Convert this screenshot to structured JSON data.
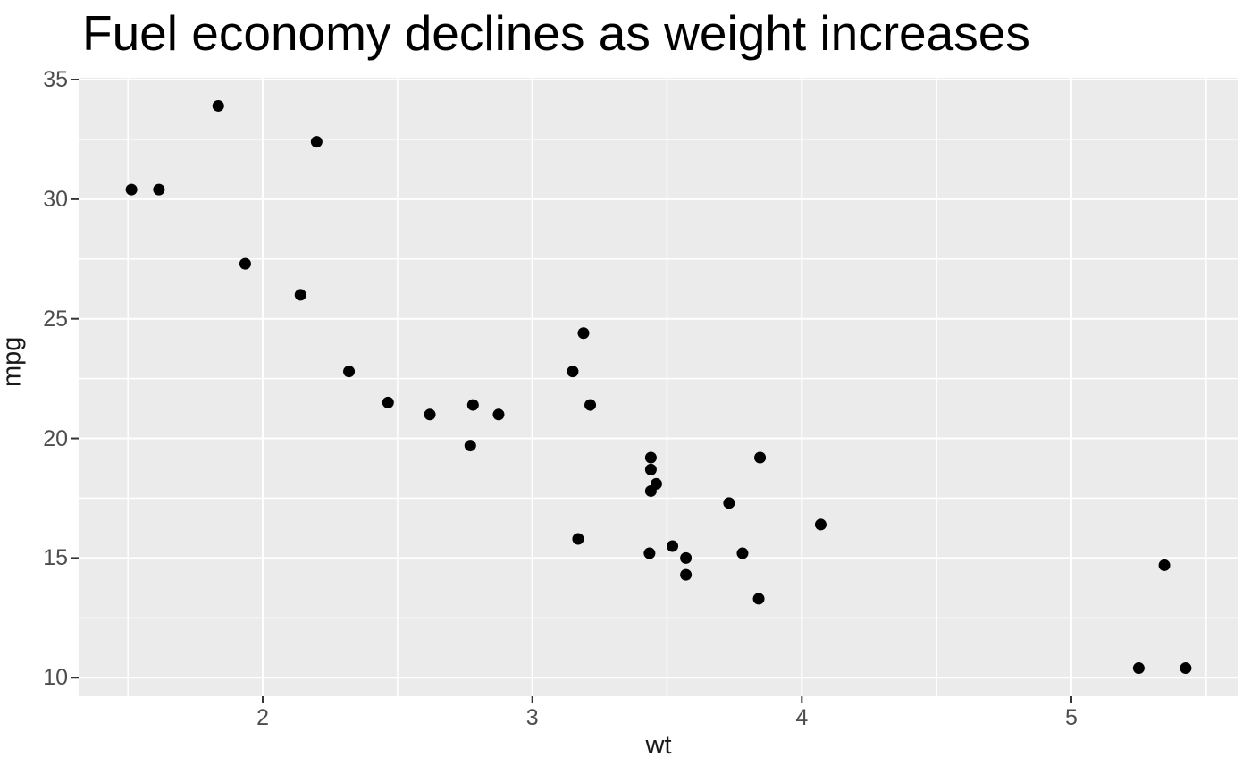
{
  "title": "Fuel economy declines as weight increases",
  "colors": {
    "background": "#FFFFFF",
    "panel_background": "#EBEBEB",
    "grid_major": "#FFFFFF",
    "grid_minor": "#FFFFFF",
    "point": "#000000",
    "tick_mark": "#333333",
    "tick_label": "#4D4D4D",
    "axis_title": "#1A1A1A",
    "title": "#000000"
  },
  "chart_data": {
    "type": "scatter",
    "title": "Fuel economy declines as weight increases",
    "xlabel": "wt",
    "ylabel": "mpg",
    "xlim": [
      1.317,
      5.62
    ],
    "ylim": [
      9.225,
      35.075
    ],
    "x_ticks": [
      2,
      3,
      4,
      5
    ],
    "y_ticks": [
      10,
      15,
      20,
      25,
      30,
      35
    ],
    "x_minor_ticks": [
      1.5,
      2.5,
      3.5,
      4.5,
      5.5
    ],
    "y_minor_ticks": [
      12.5,
      17.5,
      22.5,
      27.5,
      32.5
    ],
    "grid": true,
    "legend": false,
    "point_radius": 6.5,
    "points": [
      {
        "wt": 2.62,
        "mpg": 21.0
      },
      {
        "wt": 2.875,
        "mpg": 21.0
      },
      {
        "wt": 2.32,
        "mpg": 22.8
      },
      {
        "wt": 3.215,
        "mpg": 21.4
      },
      {
        "wt": 3.44,
        "mpg": 18.7
      },
      {
        "wt": 3.46,
        "mpg": 18.1
      },
      {
        "wt": 3.57,
        "mpg": 14.3
      },
      {
        "wt": 3.19,
        "mpg": 24.4
      },
      {
        "wt": 3.15,
        "mpg": 22.8
      },
      {
        "wt": 3.44,
        "mpg": 19.2
      },
      {
        "wt": 3.44,
        "mpg": 17.8
      },
      {
        "wt": 4.07,
        "mpg": 16.4
      },
      {
        "wt": 3.73,
        "mpg": 17.3
      },
      {
        "wt": 3.78,
        "mpg": 15.2
      },
      {
        "wt": 5.25,
        "mpg": 10.4
      },
      {
        "wt": 5.424,
        "mpg": 10.4
      },
      {
        "wt": 5.345,
        "mpg": 14.7
      },
      {
        "wt": 2.2,
        "mpg": 32.4
      },
      {
        "wt": 1.615,
        "mpg": 30.4
      },
      {
        "wt": 1.835,
        "mpg": 33.9
      },
      {
        "wt": 2.465,
        "mpg": 21.5
      },
      {
        "wt": 3.52,
        "mpg": 15.5
      },
      {
        "wt": 3.435,
        "mpg": 15.2
      },
      {
        "wt": 3.84,
        "mpg": 13.3
      },
      {
        "wt": 3.845,
        "mpg": 19.2
      },
      {
        "wt": 1.935,
        "mpg": 27.3
      },
      {
        "wt": 2.14,
        "mpg": 26.0
      },
      {
        "wt": 1.513,
        "mpg": 30.4
      },
      {
        "wt": 3.17,
        "mpg": 15.8
      },
      {
        "wt": 2.77,
        "mpg": 19.7
      },
      {
        "wt": 3.57,
        "mpg": 15.0
      },
      {
        "wt": 2.78,
        "mpg": 21.4
      }
    ]
  }
}
